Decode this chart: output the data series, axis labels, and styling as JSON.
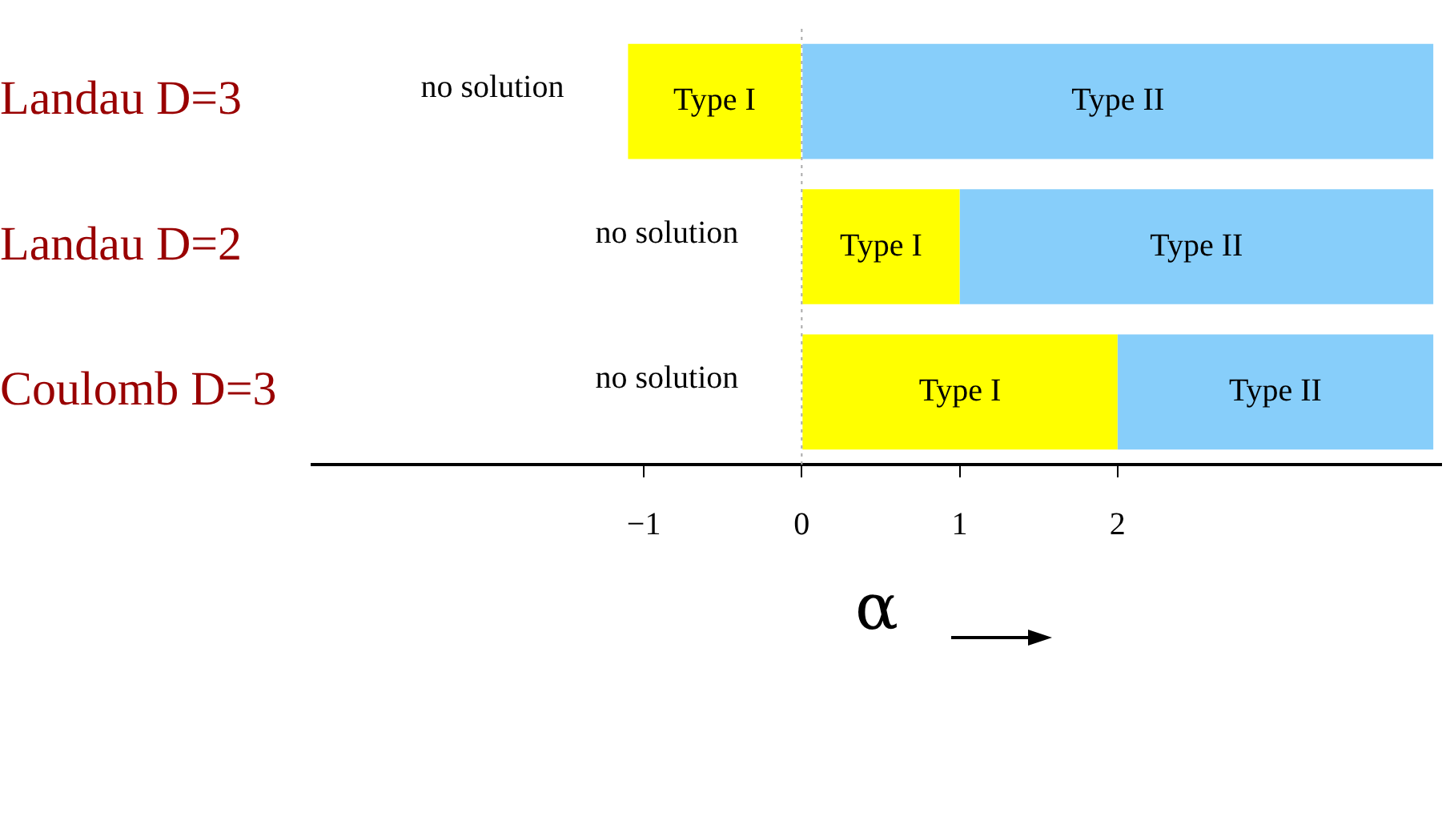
{
  "chart_data": {
    "type": "bar",
    "orientation": "horizontal",
    "categories": [
      "Landau D=3",
      "Landau D=2",
      "Coulomb D=3"
    ],
    "series": [
      {
        "name": "Type I",
        "color": "#ffff00",
        "values": [
          1.1,
          1,
          2
        ],
        "base": [
          -1.1,
          0,
          0
        ]
      },
      {
        "name": "Type II",
        "color": "#87cefa",
        "values": [
          4,
          3,
          2
        ],
        "base": [
          0,
          1,
          2
        ]
      }
    ],
    "xlabel": "α",
    "xlim": [
      -3.1,
      4.05
    ],
    "xticks": [
      -1,
      0,
      1,
      2
    ],
    "ref_lines": [
      {
        "axis": "x",
        "value": 0,
        "color": "#aaaaaa",
        "line_style": "dotted"
      }
    ],
    "annotations": [
      "no solution",
      "no solution",
      "no solution"
    ],
    "legend": false,
    "grid": false
  }
}
